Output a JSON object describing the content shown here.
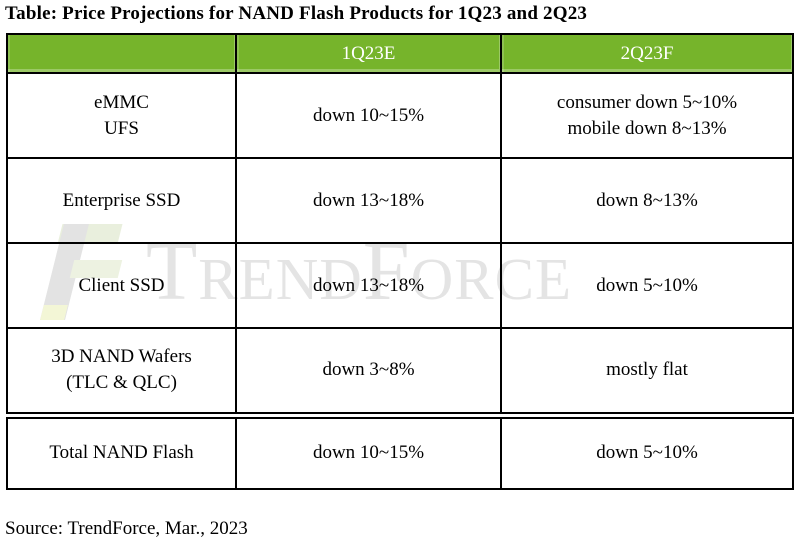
{
  "page": {
    "title": "Table: Price Projections for NAND Flash Products for 1Q23 and 2Q23",
    "source_note": "Source: TrendForce, Mar., 2023"
  },
  "watermark": {
    "text": "TrendForce",
    "logo": "trendforce-logo"
  },
  "colors": {
    "header_bg": "#76b42b",
    "header_text": "#ffffff",
    "border": "#000000",
    "cell_text": "#000000",
    "watermark_text": "#e4e4e4",
    "watermark_logo_gray": "#e3e3e3",
    "watermark_logo_green": "#e9efdd"
  },
  "table": {
    "header": [
      "",
      "1Q23E",
      "2Q23F"
    ],
    "rows": [
      {
        "product": [
          "eMMC",
          "UFS"
        ],
        "q1": [
          "down 10~15%"
        ],
        "q2": [
          "consumer down 5~10%",
          "mobile down 8~13%"
        ]
      },
      {
        "product": [
          "Enterprise SSD"
        ],
        "q1": [
          "down 13~18%"
        ],
        "q2": [
          "down 8~13%"
        ]
      },
      {
        "product": [
          "Client SSD"
        ],
        "q1": [
          "down 13~18%"
        ],
        "q2": [
          "down 5~10%"
        ]
      },
      {
        "product": [
          "3D NAND Wafers",
          "(TLC & QLC)"
        ],
        "q1": [
          "down 3~8%"
        ],
        "q2": [
          "mostly flat"
        ]
      },
      {
        "product": [
          "Total NAND Flash"
        ],
        "q1": [
          "down 10~15%"
        ],
        "q2": [
          "down 5~10%"
        ]
      }
    ]
  },
  "chart_data": {
    "type": "table",
    "title": "Table: Price Projections for NAND Flash Products for 1Q23 and 2Q23",
    "columns": [
      "",
      "1Q23E",
      "2Q23F"
    ],
    "rows": [
      [
        "eMMC / UFS",
        "down 10~15%",
        "consumer down 5~10%; mobile down 8~13%"
      ],
      [
        "Enterprise SSD",
        "down 13~18%",
        "down 8~13%"
      ],
      [
        "Client SSD",
        "down 13~18%",
        "down 5~10%"
      ],
      [
        "3D NAND Wafers (TLC & QLC)",
        "down 3~8%",
        "mostly flat"
      ],
      [
        "Total NAND Flash",
        "down 10~15%",
        "down 5~10%"
      ]
    ],
    "source": "Source: TrendForce, Mar., 2023",
    "layout": {
      "total_row_separator": "double",
      "header_style": "green-fill-white-text"
    }
  }
}
